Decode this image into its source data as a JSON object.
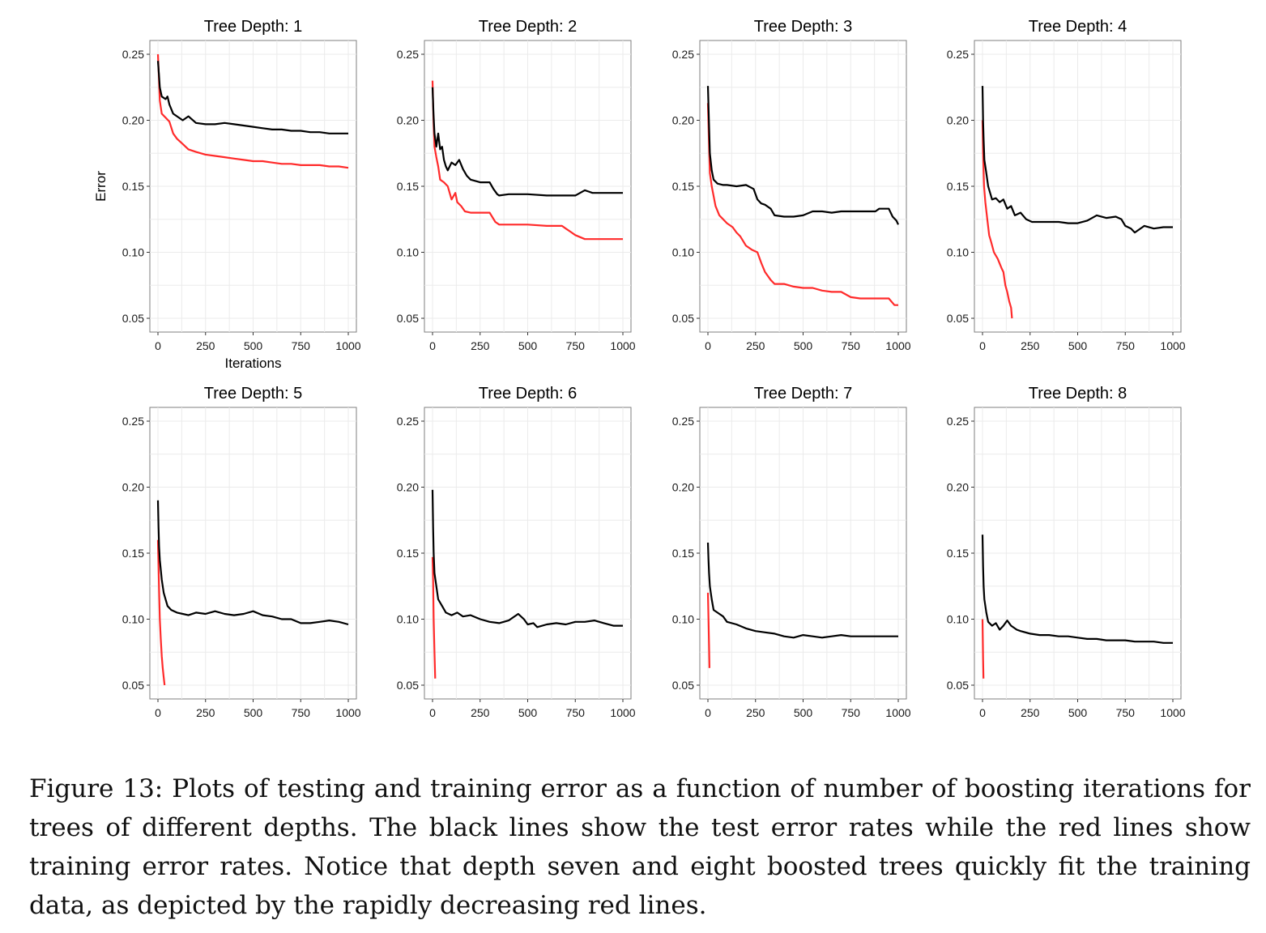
{
  "figure": {
    "caption": "Figure 13: Plots of testing and training error as a function of number of boosting iterations for trees of different depths. The black lines show the test error rates while the red lines show training error rates. Notice that depth seven and eight boosted trees quickly fit the training data, as depicted by the rapidly decreasing red lines."
  },
  "colors": {
    "test_line": "#000000",
    "train_line": "#ff2a2a",
    "grid": "#ebebeb",
    "panel_border": "#7f7f7f"
  },
  "chart_data": [
    {
      "type": "line",
      "title": "Tree Depth: 1",
      "xlabel": "Iterations",
      "ylabel": "Error",
      "xlim": [
        0,
        1000
      ],
      "ylim": [
        0.05,
        0.25
      ],
      "x_ticks": [
        "0",
        "250",
        "500",
        "750",
        "1000"
      ],
      "y_ticks": [
        "0.05",
        "0.10",
        "0.15",
        "0.20",
        "0.25"
      ],
      "grid": true,
      "series": [
        {
          "color": "#000000",
          "x": [
            0,
            5,
            10,
            20,
            30,
            40,
            50,
            60,
            80,
            100,
            130,
            160,
            200,
            250,
            300,
            350,
            400,
            450,
            500,
            550,
            600,
            650,
            700,
            750,
            800,
            850,
            900,
            950,
            1000
          ],
          "y": [
            0.245,
            0.235,
            0.225,
            0.218,
            0.217,
            0.216,
            0.218,
            0.212,
            0.205,
            0.203,
            0.2,
            0.203,
            0.198,
            0.197,
            0.197,
            0.198,
            0.197,
            0.196,
            0.195,
            0.194,
            0.193,
            0.193,
            0.192,
            0.192,
            0.191,
            0.191,
            0.19,
            0.19,
            0.19
          ]
        },
        {
          "color": "#ff2a2a",
          "x": [
            0,
            5,
            10,
            20,
            40,
            60,
            80,
            100,
            130,
            160,
            200,
            250,
            300,
            350,
            400,
            450,
            500,
            550,
            600,
            650,
            700,
            750,
            800,
            850,
            900,
            950,
            1000
          ],
          "y": [
            0.25,
            0.232,
            0.215,
            0.205,
            0.202,
            0.199,
            0.19,
            0.186,
            0.182,
            0.178,
            0.176,
            0.174,
            0.173,
            0.172,
            0.171,
            0.17,
            0.169,
            0.169,
            0.168,
            0.167,
            0.167,
            0.166,
            0.166,
            0.166,
            0.165,
            0.165,
            0.164
          ]
        }
      ]
    },
    {
      "type": "line",
      "title": "Tree Depth: 2",
      "xlim": [
        0,
        1000
      ],
      "ylim": [
        0.05,
        0.25
      ],
      "x_ticks": [
        "0",
        "250",
        "500",
        "750",
        "1000"
      ],
      "y_ticks": [
        "0.05",
        "0.10",
        "0.15",
        "0.20",
        "0.25"
      ],
      "grid": true,
      "series": [
        {
          "color": "#000000",
          "x": [
            0,
            5,
            10,
            20,
            30,
            40,
            50,
            60,
            70,
            80,
            100,
            120,
            140,
            160,
            180,
            200,
            250,
            300,
            320,
            340,
            350,
            400,
            500,
            600,
            700,
            750,
            800,
            820,
            840,
            850,
            900,
            1000
          ],
          "y": [
            0.225,
            0.205,
            0.19,
            0.18,
            0.19,
            0.178,
            0.18,
            0.17,
            0.165,
            0.162,
            0.168,
            0.166,
            0.17,
            0.163,
            0.158,
            0.155,
            0.153,
            0.153,
            0.148,
            0.144,
            0.143,
            0.144,
            0.144,
            0.143,
            0.143,
            0.143,
            0.147,
            0.146,
            0.145,
            0.145,
            0.145,
            0.145
          ]
        },
        {
          "color": "#ff2a2a",
          "x": [
            0,
            5,
            10,
            20,
            30,
            40,
            60,
            80,
            100,
            120,
            130,
            150,
            170,
            200,
            250,
            300,
            330,
            350,
            400,
            500,
            600,
            680,
            700,
            720,
            750,
            800,
            850,
            900,
            950,
            1000
          ],
          "y": [
            0.23,
            0.2,
            0.18,
            0.172,
            0.165,
            0.155,
            0.153,
            0.15,
            0.14,
            0.145,
            0.138,
            0.135,
            0.131,
            0.13,
            0.13,
            0.13,
            0.123,
            0.121,
            0.121,
            0.121,
            0.12,
            0.12,
            0.118,
            0.116,
            0.113,
            0.11,
            0.11,
            0.11,
            0.11,
            0.11
          ]
        }
      ]
    },
    {
      "type": "line",
      "title": "Tree Depth: 3",
      "xlim": [
        0,
        1000
      ],
      "ylim": [
        0.05,
        0.25
      ],
      "x_ticks": [
        "0",
        "250",
        "500",
        "750",
        "1000"
      ],
      "y_ticks": [
        "0.05",
        "0.10",
        "0.15",
        "0.20",
        "0.25"
      ],
      "grid": true,
      "series": [
        {
          "color": "#000000",
          "x": [
            0,
            5,
            10,
            20,
            30,
            50,
            80,
            100,
            150,
            200,
            240,
            260,
            280,
            300,
            330,
            350,
            400,
            450,
            500,
            550,
            600,
            650,
            700,
            750,
            800,
            850,
            880,
            900,
            950,
            970,
            990,
            1000
          ],
          "y": [
            0.226,
            0.2,
            0.175,
            0.162,
            0.155,
            0.152,
            0.151,
            0.151,
            0.15,
            0.151,
            0.148,
            0.14,
            0.137,
            0.136,
            0.133,
            0.128,
            0.127,
            0.127,
            0.128,
            0.131,
            0.131,
            0.13,
            0.131,
            0.131,
            0.131,
            0.131,
            0.131,
            0.133,
            0.133,
            0.127,
            0.124,
            0.121
          ]
        },
        {
          "color": "#ff2a2a",
          "x": [
            0,
            5,
            10,
            20,
            40,
            60,
            80,
            100,
            130,
            150,
            170,
            200,
            230,
            260,
            280,
            300,
            330,
            350,
            400,
            450,
            500,
            550,
            600,
            650,
            700,
            750,
            800,
            850,
            900,
            950,
            980,
            1000
          ],
          "y": [
            0.213,
            0.185,
            0.16,
            0.15,
            0.135,
            0.128,
            0.125,
            0.122,
            0.119,
            0.115,
            0.112,
            0.105,
            0.102,
            0.1,
            0.092,
            0.085,
            0.079,
            0.076,
            0.076,
            0.074,
            0.073,
            0.073,
            0.071,
            0.07,
            0.07,
            0.066,
            0.065,
            0.065,
            0.065,
            0.065,
            0.06,
            0.06
          ]
        }
      ]
    },
    {
      "type": "line",
      "title": "Tree Depth: 4",
      "xlim": [
        0,
        1000
      ],
      "ylim": [
        0.05,
        0.25
      ],
      "x_ticks": [
        "0",
        "250",
        "500",
        "750",
        "1000"
      ],
      "y_ticks": [
        "0.05",
        "0.10",
        "0.15",
        "0.20",
        "0.25"
      ],
      "grid": true,
      "series": [
        {
          "color": "#000000",
          "x": [
            0,
            3,
            6,
            10,
            20,
            30,
            50,
            70,
            90,
            110,
            130,
            150,
            170,
            200,
            230,
            260,
            300,
            350,
            400,
            450,
            500,
            550,
            600,
            650,
            700,
            730,
            750,
            780,
            800,
            850,
            900,
            950,
            1000
          ],
          "y": [
            0.226,
            0.2,
            0.185,
            0.17,
            0.16,
            0.15,
            0.14,
            0.141,
            0.138,
            0.14,
            0.133,
            0.135,
            0.128,
            0.13,
            0.125,
            0.123,
            0.123,
            0.123,
            0.123,
            0.122,
            0.122,
            0.124,
            0.128,
            0.126,
            0.127,
            0.125,
            0.12,
            0.118,
            0.115,
            0.12,
            0.118,
            0.119,
            0.119
          ]
        },
        {
          "color": "#ff2a2a",
          "x": [
            0,
            3,
            8,
            15,
            25,
            35,
            45,
            60,
            80,
            100,
            110,
            120,
            130,
            140,
            150,
            155
          ],
          "y": [
            0.2,
            0.175,
            0.15,
            0.138,
            0.125,
            0.113,
            0.108,
            0.1,
            0.095,
            0.088,
            0.085,
            0.075,
            0.07,
            0.063,
            0.058,
            0.05
          ]
        }
      ]
    },
    {
      "type": "line",
      "title": "Tree Depth: 5",
      "xlim": [
        0,
        1000
      ],
      "ylim": [
        0.05,
        0.25
      ],
      "x_ticks": [
        "0",
        "250",
        "500",
        "750",
        "1000"
      ],
      "y_ticks": [
        "0.05",
        "0.10",
        "0.15",
        "0.20",
        "0.25"
      ],
      "grid": true,
      "series": [
        {
          "color": "#000000",
          "x": [
            0,
            3,
            6,
            10,
            20,
            30,
            50,
            70,
            100,
            130,
            160,
            200,
            250,
            300,
            350,
            400,
            450,
            500,
            550,
            600,
            650,
            700,
            750,
            800,
            850,
            900,
            950,
            1000
          ],
          "y": [
            0.19,
            0.17,
            0.155,
            0.145,
            0.13,
            0.12,
            0.11,
            0.107,
            0.105,
            0.104,
            0.103,
            0.105,
            0.104,
            0.106,
            0.104,
            0.103,
            0.104,
            0.106,
            0.103,
            0.102,
            0.1,
            0.1,
            0.097,
            0.097,
            0.098,
            0.099,
            0.098,
            0.096
          ]
        },
        {
          "color": "#ff2a2a",
          "x": [
            0,
            3,
            6,
            10,
            15,
            20,
            25,
            30,
            35
          ],
          "y": [
            0.16,
            0.14,
            0.122,
            0.1,
            0.085,
            0.072,
            0.063,
            0.056,
            0.05
          ]
        }
      ]
    },
    {
      "type": "line",
      "title": "Tree Depth: 6",
      "xlim": [
        0,
        1000
      ],
      "ylim": [
        0.05,
        0.25
      ],
      "x_ticks": [
        "0",
        "250",
        "500",
        "750",
        "1000"
      ],
      "y_ticks": [
        "0.05",
        "0.10",
        "0.15",
        "0.20",
        "0.25"
      ],
      "grid": true,
      "series": [
        {
          "color": "#000000",
          "x": [
            0,
            3,
            6,
            10,
            20,
            30,
            50,
            70,
            100,
            130,
            160,
            200,
            250,
            300,
            350,
            400,
            450,
            480,
            500,
            530,
            550,
            600,
            650,
            700,
            750,
            800,
            850,
            900,
            950,
            1000
          ],
          "y": [
            0.198,
            0.17,
            0.15,
            0.135,
            0.125,
            0.115,
            0.11,
            0.105,
            0.103,
            0.105,
            0.102,
            0.103,
            0.1,
            0.098,
            0.097,
            0.099,
            0.104,
            0.1,
            0.096,
            0.097,
            0.094,
            0.096,
            0.097,
            0.096,
            0.098,
            0.098,
            0.099,
            0.097,
            0.095,
            0.095
          ]
        },
        {
          "color": "#ff2a2a",
          "x": [
            0,
            3,
            6,
            10,
            14
          ],
          "y": [
            0.147,
            0.13,
            0.1,
            0.075,
            0.055
          ]
        }
      ]
    },
    {
      "type": "line",
      "title": "Tree Depth: 7",
      "xlim": [
        0,
        1000
      ],
      "ylim": [
        0.05,
        0.25
      ],
      "x_ticks": [
        "0",
        "250",
        "500",
        "750",
        "1000"
      ],
      "y_ticks": [
        "0.05",
        "0.10",
        "0.15",
        "0.20",
        "0.25"
      ],
      "grid": true,
      "series": [
        {
          "color": "#000000",
          "x": [
            0,
            3,
            6,
            10,
            20,
            30,
            50,
            80,
            100,
            150,
            200,
            250,
            300,
            350,
            400,
            450,
            500,
            550,
            600,
            650,
            700,
            750,
            800,
            850,
            900,
            950,
            1000
          ],
          "y": [
            0.158,
            0.145,
            0.135,
            0.125,
            0.115,
            0.107,
            0.105,
            0.102,
            0.098,
            0.096,
            0.093,
            0.091,
            0.09,
            0.089,
            0.087,
            0.086,
            0.088,
            0.087,
            0.086,
            0.087,
            0.088,
            0.087,
            0.087,
            0.087,
            0.087,
            0.087,
            0.087
          ]
        },
        {
          "color": "#ff2a2a",
          "x": [
            0,
            3,
            6,
            8
          ],
          "y": [
            0.12,
            0.1,
            0.08,
            0.063
          ]
        }
      ]
    },
    {
      "type": "line",
      "title": "Tree Depth: 8",
      "xlim": [
        0,
        1000
      ],
      "ylim": [
        0.05,
        0.25
      ],
      "x_ticks": [
        "0",
        "250",
        "500",
        "750",
        "1000"
      ],
      "y_ticks": [
        "0.05",
        "0.10",
        "0.15",
        "0.20",
        "0.25"
      ],
      "grid": true,
      "series": [
        {
          "color": "#000000",
          "x": [
            0,
            3,
            6,
            10,
            20,
            30,
            50,
            70,
            90,
            110,
            130,
            150,
            180,
            200,
            250,
            300,
            350,
            400,
            450,
            500,
            550,
            600,
            650,
            700,
            750,
            800,
            850,
            900,
            950,
            1000
          ],
          "y": [
            0.164,
            0.14,
            0.125,
            0.115,
            0.105,
            0.098,
            0.095,
            0.097,
            0.092,
            0.095,
            0.099,
            0.095,
            0.092,
            0.091,
            0.089,
            0.088,
            0.088,
            0.087,
            0.087,
            0.086,
            0.085,
            0.085,
            0.084,
            0.084,
            0.084,
            0.083,
            0.083,
            0.083,
            0.082,
            0.082
          ]
        },
        {
          "color": "#ff2a2a",
          "x": [
            0,
            3,
            5
          ],
          "y": [
            0.1,
            0.07,
            0.055
          ]
        }
      ]
    }
  ]
}
